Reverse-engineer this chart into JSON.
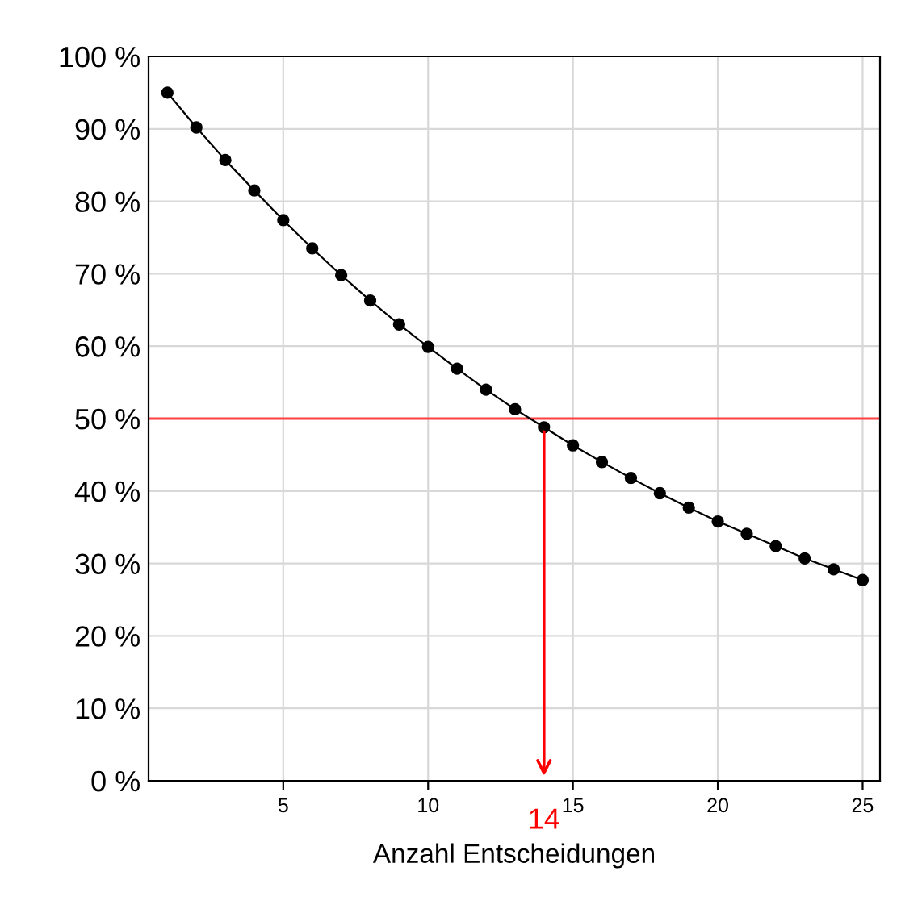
{
  "chart_data": {
    "type": "line",
    "xlabel": "Anzahl Entscheidungen",
    "x": [
      1,
      2,
      3,
      4,
      5,
      6,
      7,
      8,
      9,
      10,
      11,
      12,
      13,
      14,
      15,
      16,
      17,
      18,
      19,
      20,
      21,
      22,
      23,
      24,
      25
    ],
    "series": [
      {
        "color": "#000000",
        "values": [
          95,
          90.2,
          85.7,
          81.5,
          77.4,
          73.5,
          69.8,
          66.3,
          63,
          59.9,
          56.9,
          54,
          51.3,
          48.8,
          46.3,
          44,
          41.8,
          39.7,
          37.7,
          35.8,
          34.1,
          32.4,
          30.7,
          29.2,
          27.7
        ]
      }
    ],
    "marker": "circle",
    "line_style": "solid",
    "grid": true,
    "legend": false,
    "xlim": [
      0.35,
      25.6
    ],
    "xticks": [
      5,
      10,
      15,
      20,
      25
    ],
    "ylim": [
      0,
      100
    ],
    "yticks": [
      {
        "value": 0,
        "label": "0 %"
      },
      {
        "value": 10,
        "label": "10 %"
      },
      {
        "value": 20,
        "label": "20 %"
      },
      {
        "value": 30,
        "label": "30 %"
      },
      {
        "value": 40,
        "label": "40 %"
      },
      {
        "value": 50,
        "label": "50 %"
      },
      {
        "value": 60,
        "label": "60 %"
      },
      {
        "value": 70,
        "label": "70 %"
      },
      {
        "value": 80,
        "label": "80 %"
      },
      {
        "value": 90,
        "label": "90 %"
      },
      {
        "value": 100,
        "label": "100 %"
      }
    ],
    "ref_lines": [
      {
        "axis": "y",
        "value": 50,
        "color": "#ff4040",
        "line_style": "solid"
      }
    ],
    "annotations": [
      {
        "text": "14",
        "x": 14,
        "y": 48.8
      }
    ]
  }
}
